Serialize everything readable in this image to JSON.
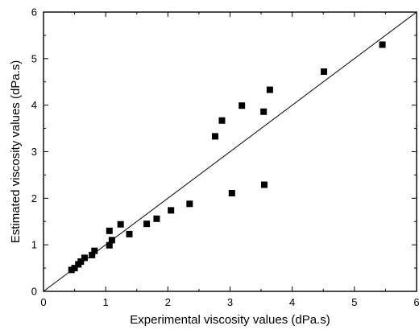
{
  "chart_data": {
    "type": "scatter",
    "title": "",
    "xlabel": "Experimental viscosity values (dPa.s)",
    "ylabel": "Estimated viscosity values (dPa.s)",
    "xlim": [
      0,
      6
    ],
    "ylim": [
      0,
      6
    ],
    "x_ticks": [
      "0",
      "1",
      "2",
      "3",
      "4",
      "5",
      "6"
    ],
    "y_ticks": [
      "0",
      "1",
      "2",
      "3",
      "4",
      "5",
      "6"
    ],
    "grid": false,
    "legend": "none",
    "marker": "filled-square",
    "marker_color": "#000000",
    "reference_line": {
      "type": "y=x",
      "from": [
        0,
        0
      ],
      "to": [
        6,
        6
      ]
    },
    "points": [
      {
        "x": 0.45,
        "y": 0.46
      },
      {
        "x": 0.5,
        "y": 0.5
      },
      {
        "x": 0.56,
        "y": 0.58
      },
      {
        "x": 0.6,
        "y": 0.64
      },
      {
        "x": 0.66,
        "y": 0.72
      },
      {
        "x": 0.78,
        "y": 0.78
      },
      {
        "x": 0.82,
        "y": 0.87
      },
      {
        "x": 1.06,
        "y": 0.99
      },
      {
        "x": 1.06,
        "y": 1.3
      },
      {
        "x": 1.1,
        "y": 1.1
      },
      {
        "x": 1.24,
        "y": 1.44
      },
      {
        "x": 1.38,
        "y": 1.23
      },
      {
        "x": 1.66,
        "y": 1.45
      },
      {
        "x": 1.82,
        "y": 1.56
      },
      {
        "x": 2.05,
        "y": 1.74
      },
      {
        "x": 2.35,
        "y": 1.88
      },
      {
        "x": 2.76,
        "y": 3.33
      },
      {
        "x": 2.87,
        "y": 3.67
      },
      {
        "x": 3.03,
        "y": 2.11
      },
      {
        "x": 3.19,
        "y": 3.99
      },
      {
        "x": 3.54,
        "y": 3.86
      },
      {
        "x": 3.55,
        "y": 2.29
      },
      {
        "x": 3.64,
        "y": 4.33
      },
      {
        "x": 4.51,
        "y": 4.72
      },
      {
        "x": 5.45,
        "y": 5.3
      }
    ]
  }
}
